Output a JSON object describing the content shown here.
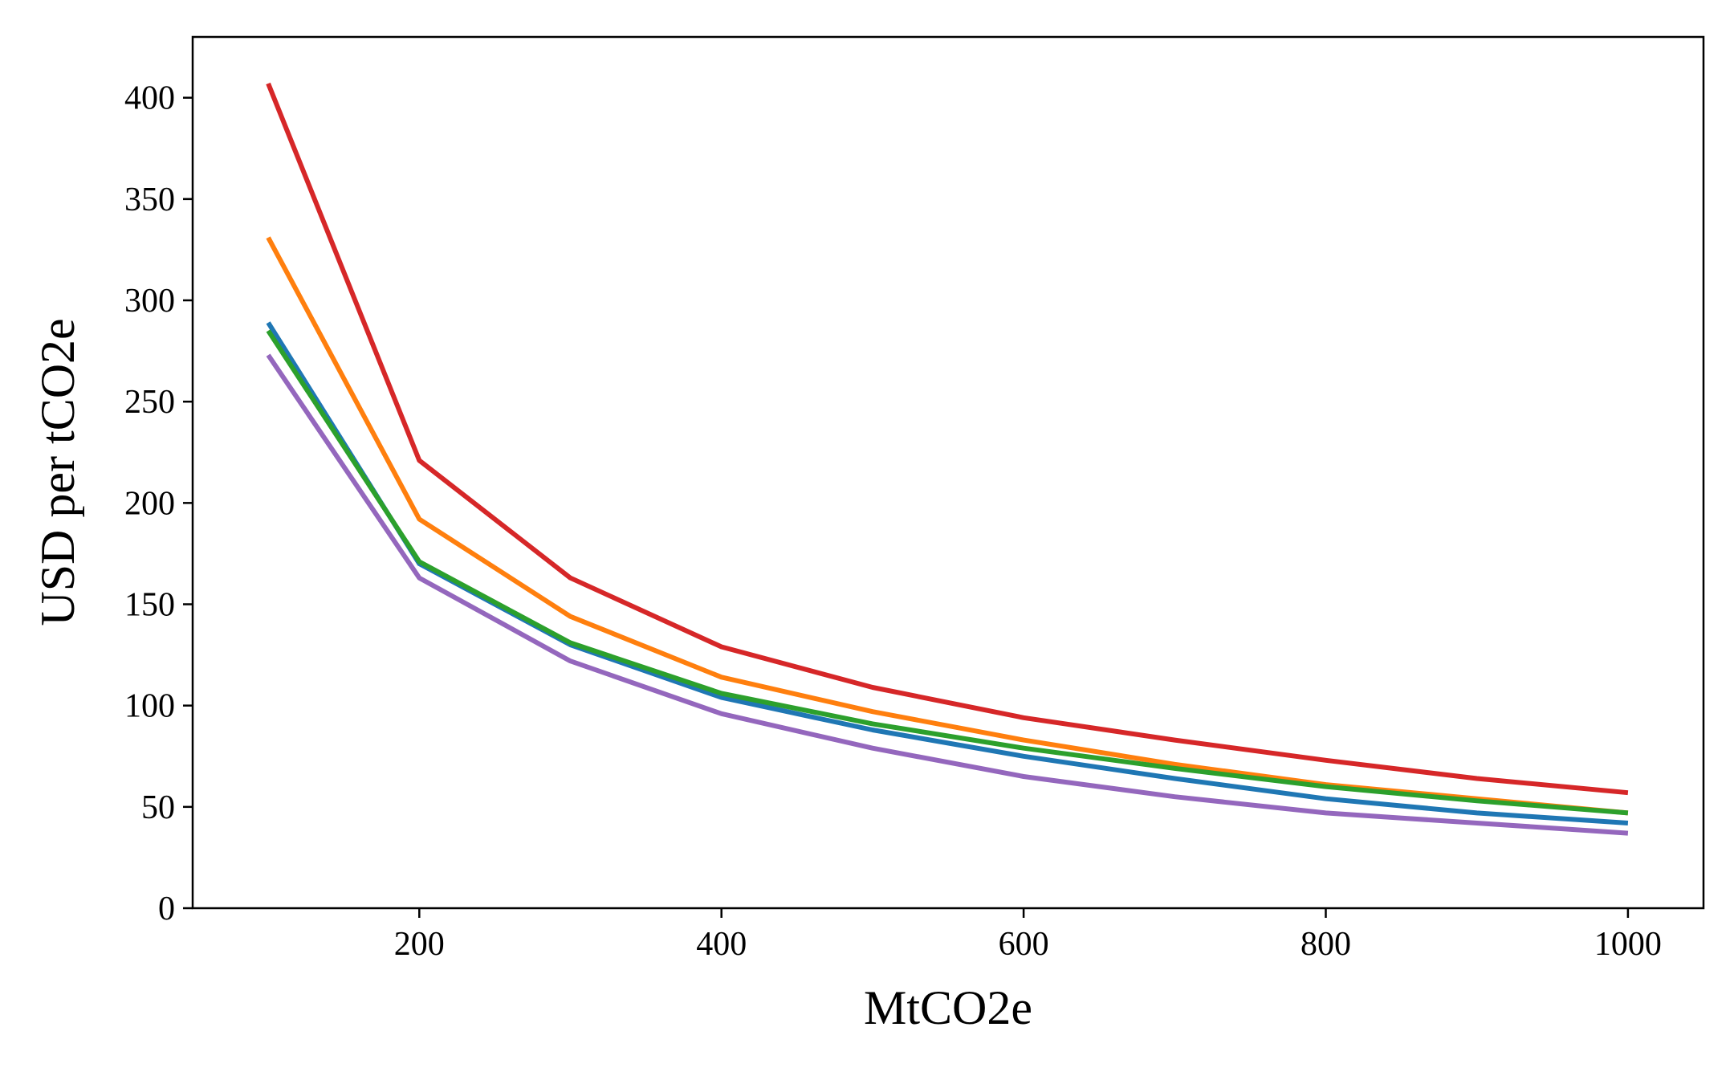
{
  "chart_data": {
    "type": "line",
    "title": "",
    "xlabel": "MtCO2e",
    "ylabel": "USD per tCO2e",
    "xlim": [
      50,
      1050
    ],
    "ylim": [
      0,
      430
    ],
    "xticks": [
      200,
      400,
      600,
      800,
      1000
    ],
    "yticks": [
      0,
      50,
      100,
      150,
      200,
      250,
      300,
      350,
      400
    ],
    "grid": false,
    "legend": "none",
    "x": [
      100,
      200,
      300,
      400,
      500,
      600,
      700,
      800,
      900,
      1000
    ],
    "series": [
      {
        "name": "series-blue",
        "color": "#1f77b4",
        "values": [
          289,
          170,
          130,
          104,
          88,
          75,
          64,
          54,
          47,
          42
        ]
      },
      {
        "name": "series-orange",
        "color": "#ff7f0e",
        "values": [
          331,
          192,
          144,
          114,
          97,
          83,
          71,
          61,
          54,
          47
        ]
      },
      {
        "name": "series-green",
        "color": "#2ca02c",
        "values": [
          285,
          171,
          131,
          106,
          91,
          79,
          69,
          60,
          53,
          47
        ]
      },
      {
        "name": "series-red",
        "color": "#d62728",
        "values": [
          407,
          221,
          163,
          129,
          109,
          94,
          83,
          73,
          64,
          57
        ]
      },
      {
        "name": "series-purple",
        "color": "#9467bd",
        "values": [
          273,
          163,
          122,
          96,
          79,
          65,
          55,
          47,
          42,
          37
        ]
      }
    ]
  }
}
